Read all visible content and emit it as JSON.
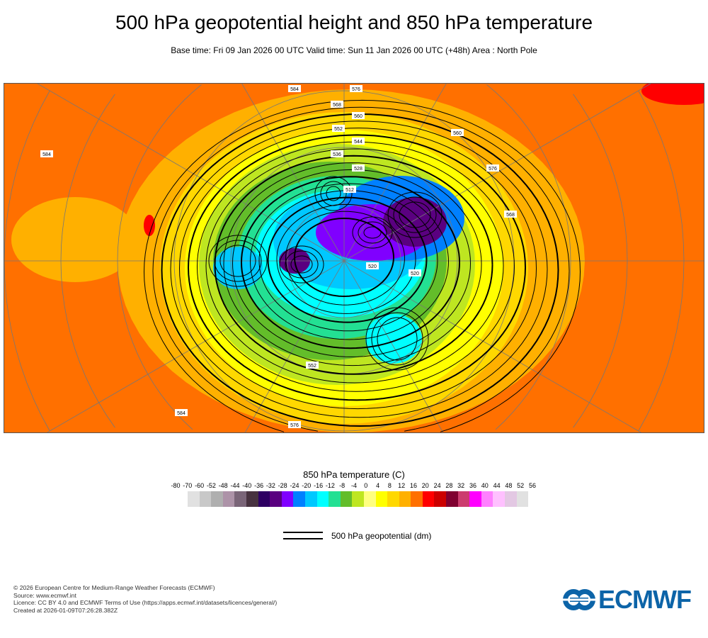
{
  "header": {
    "title": "500 hPa geopotential height and 850 hPa temperature",
    "subtitle": "Base time: Fri 09 Jan 2026 00 UTC Valid time: Sun 11 Jan 2026 00 UTC (+48h) Area : North Pole"
  },
  "map": {
    "contour_labels": [
      "584",
      "576",
      "568",
      "560",
      "552",
      "544",
      "536",
      "528",
      "520",
      "512",
      "584",
      "576",
      "568",
      "560",
      "552",
      "520",
      "584",
      "576"
    ]
  },
  "colorbar": {
    "title": "850 hPa temperature (C)",
    "labels": [
      "-80",
      "-70",
      "-60",
      "-52",
      "-48",
      "-44",
      "-40",
      "-36",
      "-32",
      "-28",
      "-24",
      "-20",
      "-16",
      "-12",
      "-8",
      "-4",
      "0",
      "4",
      "8",
      "12",
      "16",
      "20",
      "24",
      "28",
      "32",
      "36",
      "40",
      "44",
      "48",
      "52",
      "56"
    ],
    "colors": [
      "#e1e1e1",
      "#c8c8c8",
      "#afafaf",
      "#ad93a8",
      "#7a6578",
      "#47323f",
      "#2e0063",
      "#5a0080",
      "#8000ff",
      "#0080ff",
      "#00c8ff",
      "#00ffff",
      "#23e093",
      "#63bd2a",
      "#bee621",
      "#ffff80",
      "#ffff00",
      "#ffd800",
      "#ffb000",
      "#ff7000",
      "#ff0000",
      "#cc0000",
      "#800030",
      "#cc3c6e",
      "#ff00ff",
      "#ff80ff",
      "#ffc0ff",
      "#e3c8e3",
      "#e1e1e1"
    ]
  },
  "legend": {
    "label": "500 hPa geopotential (dm)"
  },
  "footer": {
    "lines": [
      "© 2026 European Centre for Medium-Range Weather Forecasts (ECMWF)",
      "Source: www.ecmwf.int",
      "Licence: CC BY 4.0 and ECMWF Terms of Use (https://apps.ecmwf.int/datasets/licences/general/)",
      "Created at 2026-01-09T07:26:28.382Z"
    ],
    "logo": "ECMWF"
  }
}
